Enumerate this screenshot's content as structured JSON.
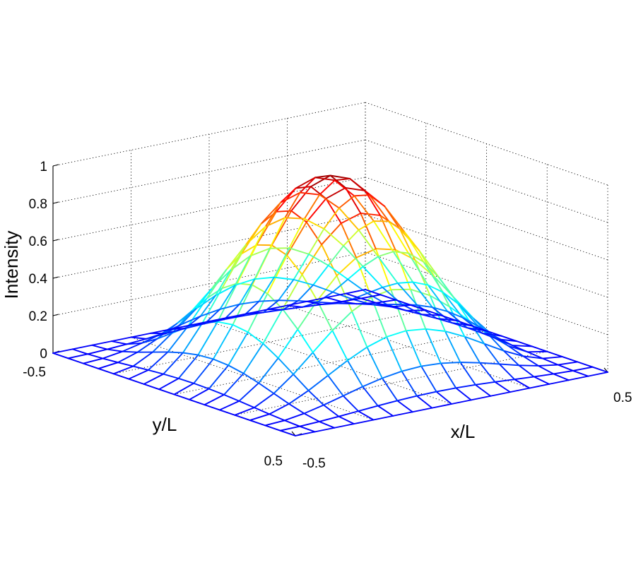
{
  "chart_data": {
    "type": "surface",
    "title": "",
    "xlabel": "x/L",
    "ylabel": "y/L",
    "zlabel": "Intensity",
    "xlim": [
      -0.5,
      0.5
    ],
    "ylim": [
      -0.5,
      0.5
    ],
    "zlim": [
      0,
      1
    ],
    "x_tick_labels": [
      "-0.5",
      "0.5"
    ],
    "y_tick_labels": [
      "-0.5",
      "0.5"
    ],
    "z_ticks": [
      0,
      0.2,
      0.4,
      0.6,
      0.8,
      1
    ],
    "z_tick_labels": [
      "0",
      "0.2",
      "0.4",
      "0.6",
      "0.8",
      "1"
    ],
    "grid": true,
    "colormap": "jet",
    "mesh_resolution": 17,
    "surface_function": "cos(pi*x/L)^2 * cos(pi*y/L)^2",
    "peak": {
      "x": 0,
      "y": 0,
      "intensity": 1
    },
    "colors": {
      "background": "#ffffff",
      "axes": "#000000",
      "grid": "#000000"
    }
  }
}
